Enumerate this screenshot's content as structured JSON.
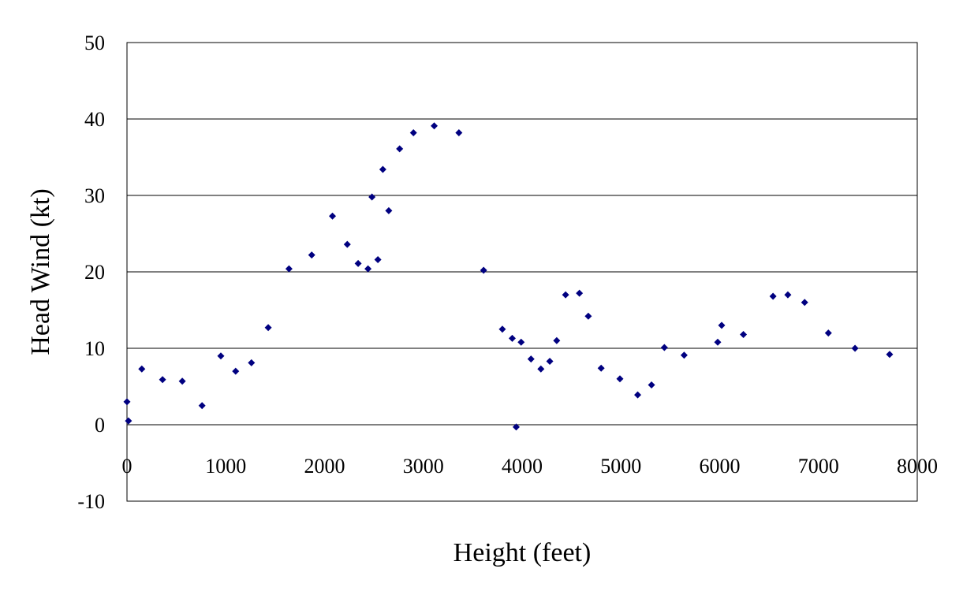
{
  "chart_data": {
    "type": "scatter",
    "xlabel": "Height (feet)",
    "ylabel": "Head Wind (kt)",
    "xlim": [
      0,
      8000
    ],
    "ylim": [
      -10,
      50
    ],
    "x_ticks": [
      0,
      1000,
      2000,
      3000,
      4000,
      5000,
      6000,
      7000,
      8000
    ],
    "y_ticks": [
      -10,
      0,
      10,
      20,
      30,
      40,
      50
    ],
    "x_tick_labels": [
      "0",
      "1000",
      "2000",
      "3000",
      "4000",
      "5000",
      "6000",
      "7000",
      "8000"
    ],
    "y_tick_labels": [
      "-10",
      "0",
      "10",
      "20",
      "30",
      "40",
      "50"
    ],
    "grid": "horizontal",
    "legend": "none",
    "marker_color": "#000080",
    "points": [
      [
        0,
        3.0
      ],
      [
        15,
        0.5
      ],
      [
        150,
        7.3
      ],
      [
        360,
        5.9
      ],
      [
        560,
        5.7
      ],
      [
        760,
        2.5
      ],
      [
        950,
        9.0
      ],
      [
        1100,
        7.0
      ],
      [
        1260,
        8.1
      ],
      [
        1430,
        12.7
      ],
      [
        1640,
        20.4
      ],
      [
        1870,
        22.2
      ],
      [
        2080,
        27.3
      ],
      [
        2230,
        23.6
      ],
      [
        2340,
        21.1
      ],
      [
        2440,
        20.4
      ],
      [
        2480,
        29.8
      ],
      [
        2540,
        21.6
      ],
      [
        2590,
        33.4
      ],
      [
        2650,
        28.0
      ],
      [
        2760,
        36.1
      ],
      [
        2900,
        38.2
      ],
      [
        3110,
        39.1
      ],
      [
        3360,
        38.2
      ],
      [
        3610,
        20.2
      ],
      [
        3800,
        12.5
      ],
      [
        3900,
        11.3
      ],
      [
        3940,
        -0.3
      ],
      [
        3990,
        10.8
      ],
      [
        4090,
        8.6
      ],
      [
        4190,
        7.3
      ],
      [
        4280,
        8.3
      ],
      [
        4350,
        11.0
      ],
      [
        4440,
        17.0
      ],
      [
        4580,
        17.2
      ],
      [
        4670,
        14.2
      ],
      [
        4800,
        7.4
      ],
      [
        4990,
        6.0
      ],
      [
        5170,
        3.9
      ],
      [
        5310,
        5.2
      ],
      [
        5440,
        10.1
      ],
      [
        5640,
        9.1
      ],
      [
        5980,
        10.8
      ],
      [
        6020,
        13.0
      ],
      [
        6240,
        11.8
      ],
      [
        6540,
        16.8
      ],
      [
        6690,
        17.0
      ],
      [
        6860,
        16.0
      ],
      [
        7100,
        12.0
      ],
      [
        7370,
        10.0
      ],
      [
        7720,
        9.2
      ]
    ]
  }
}
